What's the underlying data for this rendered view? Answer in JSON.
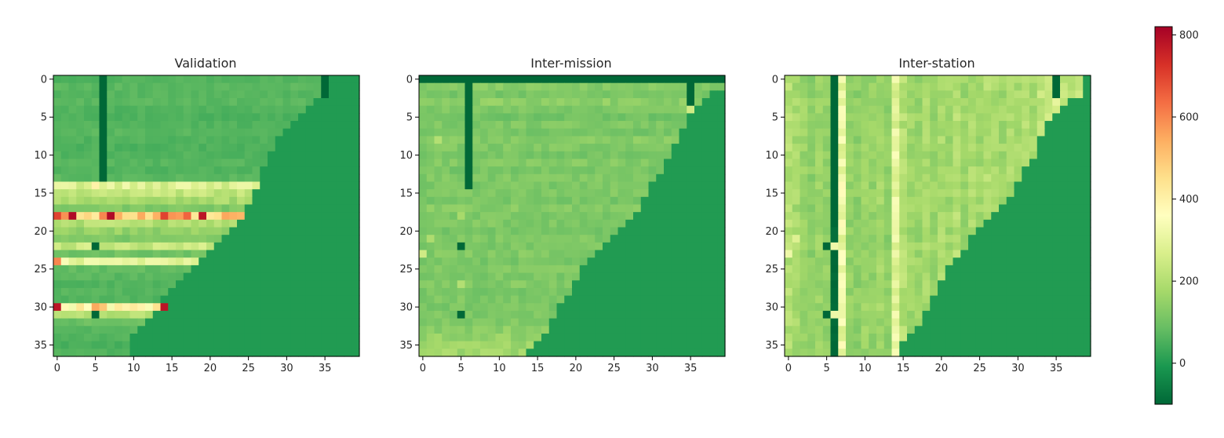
{
  "chart_data": [
    {
      "type": "heatmap",
      "title": "Validation",
      "rows": 37,
      "cols": 40,
      "xticks": [
        0,
        5,
        10,
        15,
        20,
        25,
        30,
        35
      ],
      "yticks": [
        0,
        5,
        10,
        15,
        20,
        25,
        30,
        35
      ],
      "background_value": 0,
      "boundary_cols": [
        36,
        36,
        35,
        34,
        33,
        32,
        31,
        30,
        29,
        29,
        28,
        28,
        27,
        27,
        27,
        26,
        26,
        25,
        25,
        24,
        23,
        22,
        21,
        20,
        19,
        18,
        17,
        16,
        15,
        14,
        14,
        13,
        12,
        11,
        10,
        10,
        10
      ],
      "row_base": [
        60,
        70,
        65,
        70,
        60,
        55,
        60,
        70,
        60,
        55,
        60,
        65,
        60,
        70,
        280,
        220,
        180,
        120,
        500,
        200,
        150,
        120,
        240,
        100,
        300,
        80,
        70,
        60,
        65,
        60,
        400,
        200,
        90,
        70,
        60,
        50,
        55
      ],
      "hot_cells": [
        {
          "row": 18,
          "col": 0,
          "value": 700
        },
        {
          "row": 18,
          "col": 2,
          "value": 800
        },
        {
          "row": 18,
          "col": 6,
          "value": 600
        },
        {
          "row": 18,
          "col": 7,
          "value": 800
        },
        {
          "row": 18,
          "col": 11,
          "value": 550
        },
        {
          "row": 18,
          "col": 14,
          "value": 700
        },
        {
          "row": 18,
          "col": 17,
          "value": 650
        },
        {
          "row": 18,
          "col": 19,
          "value": 780
        },
        {
          "row": 30,
          "col": 0,
          "value": 780
        },
        {
          "row": 30,
          "col": 5,
          "value": 550
        },
        {
          "row": 30,
          "col": 6,
          "value": 500
        },
        {
          "row": 30,
          "col": 14,
          "value": 780
        },
        {
          "row": 24,
          "col": 0,
          "value": 600
        },
        {
          "row": 14,
          "col": 5,
          "value": 400
        }
      ],
      "dark_cells": [
        {
          "row_from": 0,
          "row_to": 13,
          "col": 6,
          "value": -100
        },
        {
          "row_from": 0,
          "row_to": 2,
          "col": 35,
          "value": -100
        },
        {
          "row": 22,
          "col": 5,
          "value": -100
        },
        {
          "row": 31,
          "col": 5,
          "value": -100
        }
      ]
    },
    {
      "type": "heatmap",
      "title": "Inter-mission",
      "rows": 37,
      "cols": 40,
      "xticks": [
        0,
        5,
        10,
        15,
        20,
        25,
        30,
        35
      ],
      "yticks": [
        0,
        5,
        10,
        15,
        20,
        25,
        30,
        35
      ],
      "background_value": 0,
      "boundary_cols": [
        40,
        40,
        38,
        37,
        36,
        35,
        35,
        34,
        34,
        33,
        33,
        32,
        32,
        31,
        30,
        30,
        29,
        29,
        28,
        27,
        26,
        25,
        24,
        23,
        22,
        21,
        21,
        20,
        20,
        19,
        18,
        18,
        17,
        17,
        16,
        15,
        14
      ],
      "row_base": [
        -100,
        130,
        110,
        140,
        120,
        100,
        120,
        110,
        130,
        120,
        110,
        125,
        110,
        120,
        115,
        120,
        110,
        130,
        115,
        120,
        110,
        120,
        115,
        125,
        110,
        120,
        115,
        125,
        110,
        120,
        115,
        120,
        125,
        140,
        150,
        160,
        170
      ],
      "hot_cells": [
        {
          "row": 4,
          "col": 35,
          "value": 250
        },
        {
          "row": 23,
          "col": 0,
          "value": 250
        },
        {
          "row": 27,
          "col": 5,
          "value": 200
        },
        {
          "row": 18,
          "col": 5,
          "value": 180
        },
        {
          "row": 8,
          "col": 2,
          "value": 200
        },
        {
          "row": 21,
          "col": 1,
          "value": 190
        }
      ],
      "dark_cells": [
        {
          "row_from": 0,
          "row_to": 0,
          "col_from": 0,
          "col_to": 39,
          "value": -100
        },
        {
          "row_from": 0,
          "row_to": 14,
          "col": 6,
          "value": -100
        },
        {
          "row_from": 0,
          "row_to": 3,
          "col": 35,
          "value": -100
        },
        {
          "row": 22,
          "col": 5,
          "value": -100
        },
        {
          "row": 31,
          "col": 5,
          "value": -100
        }
      ]
    },
    {
      "type": "heatmap",
      "title": "Inter-station",
      "rows": 37,
      "cols": 40,
      "xticks": [
        0,
        5,
        10,
        15,
        20,
        25,
        30,
        35
      ],
      "yticks": [
        0,
        5,
        10,
        15,
        20,
        25,
        30,
        35
      ],
      "background_value": 0,
      "boundary_cols": [
        39,
        39,
        39,
        37,
        36,
        35,
        34,
        34,
        33,
        33,
        33,
        32,
        31,
        31,
        30,
        30,
        29,
        28,
        27,
        26,
        25,
        24,
        24,
        23,
        22,
        21,
        21,
        20,
        20,
        19,
        19,
        18,
        18,
        17,
        16,
        15,
        15
      ],
      "col_base": [
        200,
        180,
        160,
        140,
        160,
        150,
        -100,
        320,
        150,
        140,
        160,
        150,
        170,
        140,
        300,
        200,
        170,
        160,
        180,
        160,
        190,
        170,
        200,
        160,
        190,
        170,
        200,
        180,
        170,
        190,
        180,
        200,
        180,
        220,
        240,
        260,
        230,
        220,
        240,
        250
      ],
      "hot_cells": [
        {
          "row": 23,
          "col": 0,
          "value": 320
        },
        {
          "row": 21,
          "col": 1,
          "value": 280
        },
        {
          "row": 22,
          "col": 6,
          "value": 320
        },
        {
          "row": 31,
          "col": 6,
          "value": 320
        },
        {
          "row": 36,
          "col": 14,
          "value": 340
        }
      ],
      "dark_cells": [
        {
          "row_from": 0,
          "row_to": 13,
          "col": 6,
          "value": -100
        },
        {
          "row_from": 0,
          "row_to": 2,
          "col": 35,
          "value": -100
        },
        {
          "row": 22,
          "col": 5,
          "value": -100
        },
        {
          "row": 31,
          "col": 5,
          "value": -100
        }
      ]
    }
  ],
  "colorbar": {
    "colormap": "RdYlGn_r",
    "min": -100,
    "max": 820,
    "ticks": [
      0,
      200,
      400,
      600,
      800
    ]
  }
}
